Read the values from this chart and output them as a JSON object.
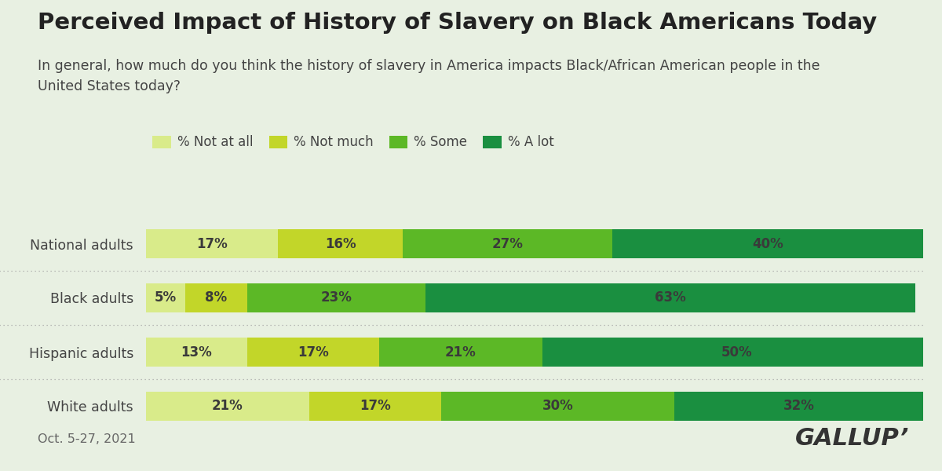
{
  "title": "Perceived Impact of History of Slavery on Black Americans Today",
  "subtitle": "In general, how much do you think the history of slavery in America impacts Black/African American people in the\nUnited States today?",
  "footnote": "Oct. 5-27, 2021",
  "gallup_label": "GALLUP’",
  "background_color": "#e8f0e2",
  "categories": [
    "National adults",
    "Black adults",
    "Hispanic adults",
    "White adults"
  ],
  "legend_labels": [
    "% Not at all",
    "% Not much",
    "% Some",
    "% A lot"
  ],
  "colors": [
    "#d9eb8a",
    "#c2d629",
    "#5cb826",
    "#1a8f40"
  ],
  "data": [
    [
      17,
      16,
      27,
      40
    ],
    [
      5,
      8,
      23,
      63
    ],
    [
      13,
      17,
      21,
      50
    ],
    [
      21,
      17,
      30,
      32
    ]
  ],
  "bar_height": 0.55,
  "title_fontsize": 21,
  "subtitle_fontsize": 12.5,
  "label_fontsize": 12.5,
  "bar_label_fontsize": 12,
  "legend_fontsize": 12,
  "footnote_fontsize": 11.5,
  "gallup_fontsize": 22
}
